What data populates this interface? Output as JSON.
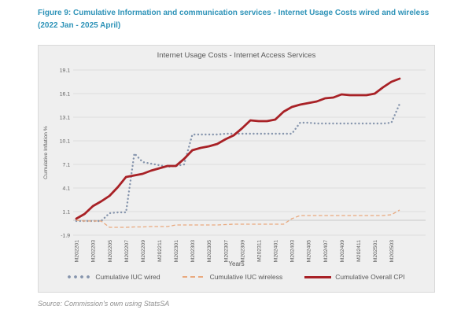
{
  "figure": {
    "caption": "Figure 9: Cumulative Information and communication services - Internet Usage Costs wired and wireless (2022 Jan - 2025 April)",
    "source": "Source: Commission's own using StatsSA"
  },
  "colors": {
    "caption": "#2e93b8",
    "text": "#595959",
    "source": "#8f8f8f",
    "chart-bg": "#efefef",
    "border": "#d9d9d9",
    "grid": "#dddddd",
    "wired": "#8695ad",
    "wireless": "#e9a97e",
    "cpi": "#a82126"
  },
  "chart_data": {
    "type": "line",
    "title": "Internet Usage Costs - Internet Access Services",
    "xlabel": "Years",
    "ylabel": "Cumulative Inflation %",
    "ylim": [
      -1.9,
      19.1
    ],
    "yticks": [
      -1.9,
      1.1,
      4.1,
      7.1,
      10.1,
      13.1,
      16.1,
      19.1
    ],
    "x_tick_every": 2,
    "grid": true,
    "legend_position": "bottom",
    "x": [
      "M202201",
      "M202202",
      "M202203",
      "M202204",
      "M202205",
      "M202206",
      "M202207",
      "M202208",
      "M202209",
      "M202210",
      "M202211",
      "M202212",
      "M202301",
      "M202302",
      "M202303",
      "M202304",
      "M202305",
      "M202306",
      "M202307",
      "M202308",
      "M202309",
      "M202310",
      "M202311",
      "M202312",
      "M202401",
      "M202402",
      "M202403",
      "M202404",
      "M202405",
      "M202406",
      "M202407",
      "M202408",
      "M202409",
      "M202410",
      "M202411",
      "M202412",
      "M202501",
      "M202502",
      "M202503",
      "M202504"
    ],
    "series": [
      {
        "name": "Cumulative IUC wired",
        "style": "dotted",
        "color": "#8695ad",
        "values": [
          -0.1,
          -0.1,
          -0.1,
          -0.1,
          0.9,
          1.0,
          1.0,
          8.5,
          7.4,
          7.2,
          7.0,
          6.8,
          6.9,
          7.1,
          10.9,
          10.9,
          10.9,
          10.9,
          11.0,
          11.0,
          11.0,
          11.0,
          11.0,
          11.0,
          11.0,
          11.0,
          11.0,
          12.4,
          12.4,
          12.3,
          12.3,
          12.3,
          12.3,
          12.3,
          12.3,
          12.3,
          12.3,
          12.3,
          12.4,
          14.8
        ]
      },
      {
        "name": "Cumulative IUC wireless",
        "style": "dashed",
        "color": "#e9a97e",
        "values": [
          0.0,
          -0.1,
          -0.1,
          -0.1,
          -0.9,
          -0.9,
          -0.9,
          -0.85,
          -0.85,
          -0.8,
          -0.8,
          -0.8,
          -0.6,
          -0.6,
          -0.6,
          -0.6,
          -0.6,
          -0.6,
          -0.55,
          -0.5,
          -0.5,
          -0.5,
          -0.5,
          -0.5,
          -0.5,
          -0.5,
          0.2,
          0.6,
          0.6,
          0.6,
          0.6,
          0.6,
          0.6,
          0.6,
          0.6,
          0.6,
          0.6,
          0.6,
          0.7,
          1.3
        ]
      },
      {
        "name": "Cumulative Overall CPI",
        "style": "solid",
        "color": "#a82126",
        "values": [
          0.2,
          0.8,
          1.8,
          2.4,
          3.1,
          4.2,
          5.5,
          5.7,
          5.9,
          6.3,
          6.6,
          6.9,
          6.9,
          7.8,
          8.9,
          9.2,
          9.4,
          9.7,
          10.3,
          10.8,
          11.7,
          12.7,
          12.6,
          12.6,
          12.8,
          13.8,
          14.4,
          14.7,
          14.9,
          15.1,
          15.5,
          15.6,
          16.0,
          15.9,
          15.9,
          15.9,
          16.1,
          16.9,
          17.6,
          18.0
        ]
      }
    ]
  }
}
